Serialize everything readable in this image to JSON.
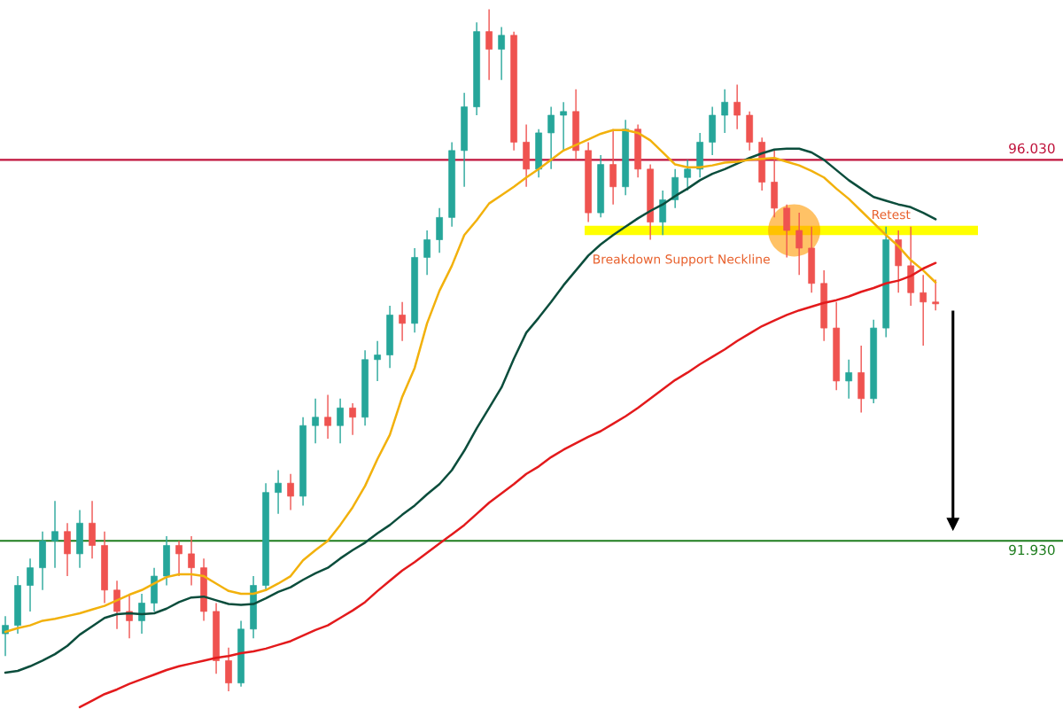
{
  "chart_data": {
    "type": "candlestick",
    "categories": [
      null,
      null,
      null,
      null,
      null,
      null,
      null,
      null,
      null,
      null,
      null,
      null,
      null,
      null,
      null,
      null,
      null,
      null,
      null,
      null,
      null,
      null,
      null,
      null,
      null,
      null,
      null,
      null,
      null,
      null,
      null,
      null,
      null,
      null,
      null,
      null,
      null,
      null,
      null,
      null,
      null,
      null,
      null,
      null,
      null,
      null,
      null,
      null,
      null,
      null,
      null,
      null,
      null,
      null,
      null,
      null,
      null,
      null,
      null,
      null,
      null,
      null,
      null,
      null,
      null,
      null,
      null,
      null,
      null,
      null,
      null,
      null,
      null,
      null,
      null,
      null
    ],
    "ohlc": [
      [
        90.93,
        91.12,
        90.69,
        91.02
      ],
      [
        91.02,
        91.55,
        90.93,
        91.45
      ],
      [
        91.45,
        91.74,
        91.17,
        91.64
      ],
      [
        91.64,
        92.03,
        91.4,
        91.93
      ],
      [
        91.93,
        92.36,
        91.64,
        92.03
      ],
      [
        92.03,
        92.12,
        91.55,
        91.79
      ],
      [
        91.79,
        92.26,
        91.64,
        92.12
      ],
      [
        92.12,
        92.36,
        91.74,
        91.88
      ],
      [
        91.88,
        92.03,
        91.26,
        91.4
      ],
      [
        91.4,
        91.5,
        90.98,
        91.17
      ],
      [
        91.17,
        91.36,
        90.88,
        91.07
      ],
      [
        91.07,
        91.36,
        90.93,
        91.26
      ],
      [
        91.26,
        91.64,
        91.17,
        91.55
      ],
      [
        91.55,
        91.98,
        91.45,
        91.88
      ],
      [
        91.88,
        91.93,
        91.55,
        91.79
      ],
      [
        91.79,
        91.98,
        91.45,
        91.64
      ],
      [
        91.64,
        91.74,
        91.07,
        91.17
      ],
      [
        91.17,
        91.26,
        90.5,
        90.64
      ],
      [
        90.64,
        90.78,
        90.31,
        90.4
      ],
      [
        90.4,
        91.07,
        90.36,
        90.98
      ],
      [
        90.98,
        91.55,
        90.88,
        91.45
      ],
      [
        91.45,
        92.55,
        91.4,
        92.45
      ],
      [
        92.45,
        92.69,
        92.22,
        92.55
      ],
      [
        92.55,
        92.65,
        92.26,
        92.41
      ],
      [
        92.41,
        93.26,
        92.31,
        93.17
      ],
      [
        93.17,
        93.46,
        92.98,
        93.26
      ],
      [
        93.26,
        93.5,
        93.03,
        93.17
      ],
      [
        93.17,
        93.46,
        92.98,
        93.36
      ],
      [
        93.36,
        93.41,
        93.07,
        93.26
      ],
      [
        93.26,
        93.98,
        93.17,
        93.88
      ],
      [
        93.88,
        94.08,
        93.65,
        93.93
      ],
      [
        93.93,
        94.46,
        93.79,
        94.36
      ],
      [
        94.36,
        94.5,
        94.08,
        94.27
      ],
      [
        94.27,
        95.08,
        94.17,
        94.98
      ],
      [
        94.98,
        95.27,
        94.79,
        95.17
      ],
      [
        95.17,
        95.51,
        95.03,
        95.41
      ],
      [
        95.41,
        96.22,
        95.31,
        96.13
      ],
      [
        96.13,
        96.75,
        95.74,
        96.6
      ],
      [
        96.6,
        97.51,
        96.51,
        97.41
      ],
      [
        97.41,
        97.65,
        96.89,
        97.22
      ],
      [
        97.22,
        97.46,
        96.89,
        97.37
      ],
      [
        97.37,
        97.41,
        96.13,
        96.22
      ],
      [
        96.22,
        96.41,
        95.74,
        95.93
      ],
      [
        95.93,
        96.36,
        95.84,
        96.32
      ],
      [
        96.32,
        96.6,
        95.93,
        96.51
      ],
      [
        96.51,
        96.65,
        96.13,
        96.55
      ],
      [
        96.55,
        96.79,
        96.03,
        96.13
      ],
      [
        96.13,
        96.22,
        95.36,
        95.46
      ],
      [
        95.46,
        96.08,
        95.41,
        95.98
      ],
      [
        95.98,
        96.36,
        95.55,
        95.74
      ],
      [
        95.74,
        96.46,
        95.65,
        96.36
      ],
      [
        96.36,
        96.41,
        95.84,
        95.93
      ],
      [
        95.93,
        95.98,
        95.17,
        95.36
      ],
      [
        95.36,
        95.7,
        95.22,
        95.6
      ],
      [
        95.6,
        95.93,
        95.51,
        95.84
      ],
      [
        95.84,
        96.03,
        95.7,
        95.93
      ],
      [
        95.93,
        96.32,
        95.84,
        96.22
      ],
      [
        96.22,
        96.6,
        96.08,
        96.51
      ],
      [
        96.51,
        96.79,
        96.32,
        96.65
      ],
      [
        96.65,
        96.84,
        96.36,
        96.51
      ],
      [
        96.51,
        96.55,
        96.13,
        96.22
      ],
      [
        96.22,
        96.27,
        95.7,
        95.79
      ],
      [
        95.79,
        96.13,
        95.41,
        95.51
      ],
      [
        95.51,
        95.55,
        94.98,
        95.27
      ],
      [
        95.27,
        95.46,
        94.79,
        95.08
      ],
      [
        95.08,
        95.31,
        94.6,
        94.7
      ],
      [
        94.7,
        94.84,
        94.08,
        94.22
      ],
      [
        94.22,
        94.5,
        93.55,
        93.65
      ],
      [
        93.65,
        93.88,
        93.46,
        93.74
      ],
      [
        93.74,
        94.03,
        93.31,
        93.46
      ],
      [
        93.46,
        94.31,
        93.41,
        94.22
      ],
      [
        94.22,
        95.31,
        94.12,
        95.17
      ],
      [
        95.17,
        95.27,
        94.6,
        94.89
      ],
      [
        94.89,
        95.31,
        94.46,
        94.6
      ],
      [
        94.6,
        94.79,
        94.03,
        94.5
      ],
      [
        94.5,
        94.74,
        94.41,
        94.48
      ]
    ],
    "series": [
      {
        "type": "line",
        "color": "#0b4d3c",
        "values": [
          90.51,
          90.53,
          90.58,
          90.64,
          90.71,
          90.8,
          90.92,
          91.01,
          91.1,
          91.14,
          91.15,
          91.14,
          91.15,
          91.2,
          91.27,
          91.32,
          91.33,
          91.29,
          91.25,
          91.24,
          91.25,
          91.31,
          91.38,
          91.43,
          91.51,
          91.58,
          91.64,
          91.74,
          91.83,
          91.91,
          92.01,
          92.1,
          92.21,
          92.31,
          92.43,
          92.54,
          92.69,
          92.9,
          93.14,
          93.36,
          93.58,
          93.89,
          94.17,
          94.33,
          94.5,
          94.68,
          94.84,
          95.0,
          95.12,
          95.22,
          95.31,
          95.4,
          95.48,
          95.55,
          95.64,
          95.72,
          95.81,
          95.88,
          95.93,
          95.99,
          96.05,
          96.1,
          96.14,
          96.15,
          96.15,
          96.11,
          96.03,
          95.92,
          95.81,
          95.72,
          95.63,
          95.59,
          95.55,
          95.52,
          95.46,
          95.39
        ]
      },
      {
        "type": "line",
        "color": "#f2b10c",
        "values": [
          90.95,
          90.99,
          91.02,
          91.07,
          91.09,
          91.12,
          91.15,
          91.19,
          91.23,
          91.29,
          91.35,
          91.4,
          91.47,
          91.54,
          91.57,
          91.57,
          91.55,
          91.47,
          91.39,
          91.36,
          91.36,
          91.4,
          91.47,
          91.55,
          91.72,
          91.83,
          91.93,
          92.1,
          92.29,
          92.52,
          92.81,
          93.07,
          93.48,
          93.79,
          94.27,
          94.62,
          94.89,
          95.22,
          95.38,
          95.56,
          95.65,
          95.74,
          95.84,
          95.93,
          96.03,
          96.13,
          96.19,
          96.25,
          96.31,
          96.35,
          96.35,
          96.32,
          96.24,
          96.11,
          95.98,
          95.95,
          95.95,
          95.97,
          96.0,
          96.01,
          96.03,
          96.04,
          96.05,
          96.01,
          95.97,
          95.91,
          95.84,
          95.72,
          95.61,
          95.48,
          95.35,
          95.22,
          95.1,
          94.95,
          94.84,
          94.71
        ]
      },
      {
        "type": "line",
        "color": "#e31a1c",
        "values": [
          null,
          null,
          null,
          null,
          null,
          null,
          90.14,
          90.21,
          90.28,
          90.33,
          90.39,
          90.44,
          90.49,
          90.54,
          90.58,
          90.61,
          90.64,
          90.67,
          90.69,
          90.72,
          90.74,
          90.77,
          90.81,
          90.85,
          90.91,
          90.97,
          91.02,
          91.1,
          91.18,
          91.27,
          91.39,
          91.5,
          91.61,
          91.7,
          91.8,
          91.9,
          92.0,
          92.1,
          92.22,
          92.34,
          92.44,
          92.54,
          92.65,
          92.73,
          92.83,
          92.91,
          92.98,
          93.05,
          93.11,
          93.19,
          93.27,
          93.36,
          93.46,
          93.56,
          93.66,
          93.74,
          93.83,
          93.91,
          93.99,
          94.08,
          94.16,
          94.24,
          94.3,
          94.36,
          94.41,
          94.45,
          94.49,
          94.52,
          94.56,
          94.61,
          94.65,
          94.7,
          94.73,
          94.78,
          94.86,
          94.92
        ]
      }
    ],
    "ylim": [
      90.12,
      97.75
    ],
    "ref_lines": [
      {
        "axis": "y",
        "value": 96.03,
        "label": "96.030",
        "color": "#c0143c"
      },
      {
        "axis": "y",
        "value": 91.93,
        "label": "91.930",
        "color": "#1e7d1e"
      }
    ],
    "bands": [
      {
        "axis": "y",
        "from": 95.22,
        "to": 95.32,
        "color": "#ffff00"
      }
    ],
    "annotations": [
      "Retest",
      "Breakdown Support Neckline"
    ],
    "legend": false
  }
}
